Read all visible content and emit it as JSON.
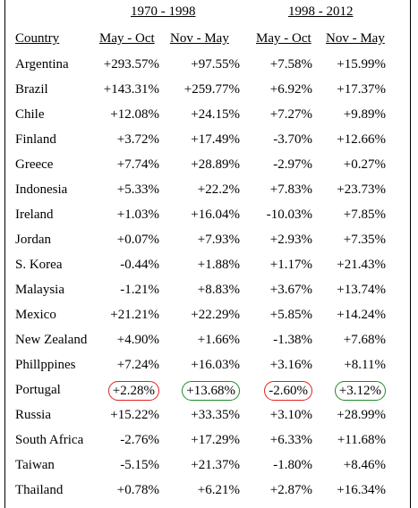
{
  "periods": [
    "1970 - 1998",
    "1998 - 2012"
  ],
  "headers": {
    "country": "Country",
    "p1_may_oct": "May - Oct",
    "p1_nov_may": "Nov - May",
    "p2_may_oct": "May - Oct",
    "p2_nov_may": "Nov - May"
  },
  "rows": [
    {
      "country": "Argentina",
      "v": [
        "+293.57%",
        "+97.55%",
        "+7.58%",
        "+15.99%"
      ]
    },
    {
      "country": "Brazil",
      "v": [
        "+143.31%",
        "+259.77%",
        "+6.92%",
        "+17.37%"
      ]
    },
    {
      "country": "Chile",
      "v": [
        "+12.08%",
        "+24.15%",
        "+7.27%",
        "+9.89%"
      ]
    },
    {
      "country": "Finland",
      "v": [
        "+3.72%",
        "+17.49%",
        "-3.70%",
        "+12.66%"
      ]
    },
    {
      "country": "Greece",
      "v": [
        "+7.74%",
        "+28.89%",
        "-2.97%",
        "+0.27%"
      ]
    },
    {
      "country": "Indonesia",
      "v": [
        "+5.33%",
        "+22.2%",
        "+7.83%",
        "+23.73%"
      ]
    },
    {
      "country": "Ireland",
      "v": [
        "+1.03%",
        "+16.04%",
        "-10.03%",
        "+7.85%"
      ]
    },
    {
      "country": "Jordan",
      "v": [
        "+0.07%",
        "+7.93%",
        "+2.93%",
        "+7.35%"
      ]
    },
    {
      "country": "S. Korea",
      "v": [
        "-0.44%",
        "+1.88%",
        "+1.17%",
        "+21.43%"
      ]
    },
    {
      "country": "Malaysia",
      "v": [
        "-1.21%",
        "+8.83%",
        "+3.67%",
        "+13.74%"
      ]
    },
    {
      "country": "Mexico",
      "v": [
        "+21.21%",
        "+22.29%",
        "+5.85%",
        "+14.24%"
      ]
    },
    {
      "country": "New Zealand",
      "v": [
        "+4.90%",
        "+1.66%",
        "-1.38%",
        "+7.68%"
      ]
    },
    {
      "country": "Phillppines",
      "v": [
        "+7.24%",
        "+16.03%",
        "+3.16%",
        "+8.11%"
      ]
    },
    {
      "country": "Portugal",
      "v": [
        "+2.28%",
        "+13.68%",
        "-2.60%",
        "+3.12%"
      ],
      "highlight": [
        "red",
        "green",
        "red",
        "green"
      ]
    },
    {
      "country": "Russia",
      "v": [
        "+15.22%",
        "+33.35%",
        "+3.10%",
        "+28.99%"
      ]
    },
    {
      "country": "South Africa",
      "v": [
        "-2.76%",
        "+17.29%",
        "+6.33%",
        "+11.68%"
      ]
    },
    {
      "country": "Taiwan",
      "v": [
        "-5.15%",
        "+21.37%",
        "-1.80%",
        "+8.46%"
      ]
    },
    {
      "country": "Thailand",
      "v": [
        "+0.78%",
        "+6.21%",
        "+2.87%",
        "+16.34%"
      ]
    }
  ],
  "colors": {
    "highlight_red": "#e32020",
    "highlight_green": "#1e8a2a"
  }
}
